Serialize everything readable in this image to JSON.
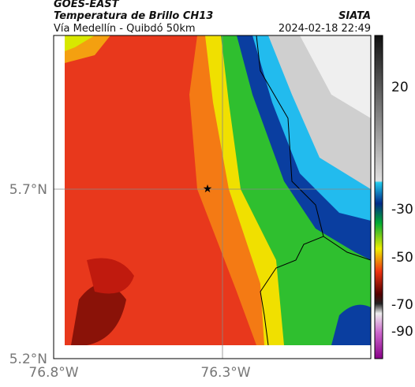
{
  "header": {
    "title": "GOES-EAST",
    "subtitle": "Temperatura de Brillo CH13",
    "source": "SIATA",
    "location": "Vía Medellín - Quibdó 50km",
    "timestamp": "2024-02-18 22:49"
  },
  "axes": {
    "y_labels": [
      "5.7°N",
      "5.2°N"
    ],
    "x_labels": [
      "76.8°W",
      "76.3°W"
    ]
  },
  "colorbar": {
    "labels": [
      "20",
      "-30",
      "-50",
      "-70",
      "-90"
    ]
  }
}
